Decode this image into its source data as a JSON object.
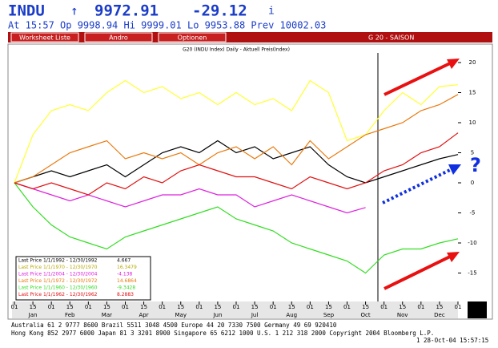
{
  "header": {
    "ticker": "INDU",
    "arrow": "↑",
    "price": "9972.91",
    "change": "-29.12",
    "info": "i",
    "quote_line": "At 15:57 Op 9998.94  Hi 9999.01  Lo 9953.88  Prev 10002.03"
  },
  "menu": {
    "items": [
      "Worksheet Liste",
      "Andro",
      "Optionen"
    ],
    "right": "G 20 - SAISON"
  },
  "footer": {
    "line1": "Australia 61 2 9777 8600       Brazil 5511 3048 4500            Europe 44 20 7330 7500          Germany 49 69 920410",
    "line2": "Hong Kong 852 2977 6000  Japan 81 3 3201 8900  Singapore 65 6212 1000  U.S. 1 212 318 2000  Copyright 2004 Bloomberg L.P.",
    "line3": "1 28-Oct-04 15:57:15"
  },
  "chart_data": {
    "type": "line",
    "title": "G20 (INDU Index) Daily - Aktuell Preis(Index)",
    "categories": [
      "01",
      "15",
      "01",
      "15",
      "01",
      "15",
      "01",
      "15",
      "01",
      "15",
      "01",
      "15",
      "01",
      "15",
      "01",
      "15",
      "01",
      "15",
      "01",
      "15",
      "01",
      "15",
      "01",
      "15",
      "01"
    ],
    "months": [
      "Jan",
      "Feb",
      "Mar",
      "Apr",
      "May",
      "Jun",
      "Jul",
      "Aug",
      "Sep",
      "Oct",
      "Nov",
      "Dec"
    ],
    "ylim": [
      -19.6,
      22.4
    ],
    "yticks": [
      20,
      15,
      10,
      5,
      0,
      -5,
      -10,
      -15
    ],
    "annotation": "?",
    "series": [
      {
        "name": "Last Price 1/1/1992 - 12/30/1992",
        "last": 4.667,
        "color": "#000000",
        "values": [
          0,
          1,
          2,
          1,
          2,
          3,
          1,
          3,
          5,
          6,
          5,
          7,
          5,
          6,
          4,
          5,
          6,
          3,
          1,
          0,
          1,
          2,
          3,
          4,
          4.7
        ]
      },
      {
        "name": "Last Price 1/1/1970 - 12/30/1970",
        "last": 16.3479,
        "color": "#ffff33",
        "values": [
          0,
          8,
          12,
          13,
          12,
          15,
          17,
          15,
          16,
          14,
          15,
          13,
          15,
          13,
          14,
          12,
          17,
          15,
          7,
          8,
          12,
          15,
          13,
          16,
          16.3
        ]
      },
      {
        "name": "Last Price 1/1/2004 - 12/30/2004",
        "last": -4.138,
        "color": "#dd22dd",
        "values": [
          0,
          -1,
          -2,
          -3,
          -2,
          -3,
          -4,
          -3,
          -2,
          -2,
          -1,
          -2,
          -2,
          -4,
          -3,
          -2,
          -3,
          -4,
          -5,
          -4.1,
          null,
          null,
          null,
          null,
          null
        ]
      },
      {
        "name": "Last Price 1/1/1972 - 12/30/1972",
        "last": 14.6864,
        "color": "#e87a10",
        "values": [
          0,
          1,
          3,
          5,
          6,
          7,
          4,
          5,
          4,
          5,
          3,
          5,
          6,
          4,
          6,
          3,
          7,
          4,
          6,
          8,
          9,
          10,
          12,
          13,
          14.7
        ]
      },
      {
        "name": "Last Price 1/1/1960 - 12/30/1960",
        "last": -9.3428,
        "color": "#33dd22",
        "values": [
          0,
          -4,
          -7,
          -9,
          -10,
          -11,
          -9,
          -8,
          -7,
          -6,
          -5,
          -4,
          -6,
          -7,
          -8,
          -10,
          -11,
          -12,
          -13,
          -15,
          -12,
          -11,
          -11,
          -10,
          -9.3
        ]
      },
      {
        "name": "Last Price 1/1/1962 - 12/30/1962",
        "last": 8.2883,
        "color": "#e01010",
        "values": [
          0,
          -1,
          0,
          -1,
          -2,
          0,
          -1,
          1,
          0,
          2,
          3,
          2,
          1,
          1,
          0,
          -1,
          1,
          0,
          -1,
          0,
          2,
          3,
          5,
          6,
          8.3
        ]
      }
    ]
  }
}
